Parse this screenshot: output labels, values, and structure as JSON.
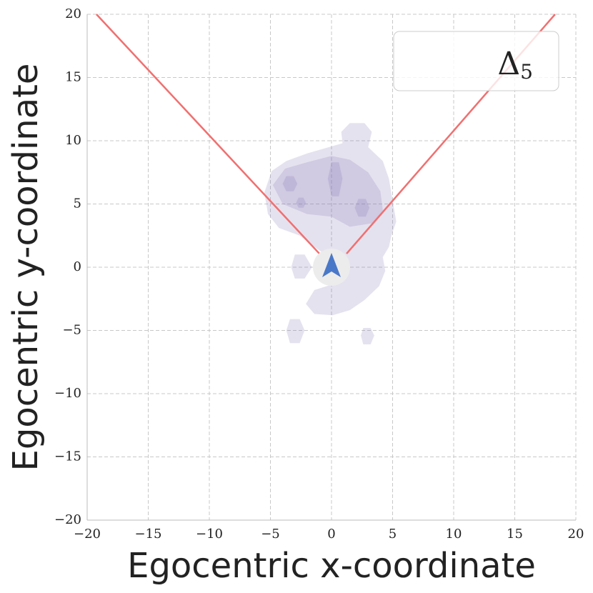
{
  "chart_data": {
    "type": "kde-lines",
    "x_label": "Egocentric x-coordinate",
    "y_label": "Egocentric y-coordinate",
    "xlim": [
      -20,
      20
    ],
    "ylim": [
      -20,
      20
    ],
    "xticks": [
      {
        "value": -20,
        "label": "−20"
      },
      {
        "value": -15,
        "label": "−15"
      },
      {
        "value": -10,
        "label": "−10"
      },
      {
        "value": -5,
        "label": "−5"
      },
      0,
      5,
      10,
      15,
      20
    ],
    "yticks": [
      {
        "value": -20,
        "label": "−20"
      },
      {
        "value": -15,
        "label": "−15"
      },
      {
        "value": -10,
        "label": "−10"
      },
      {
        "value": -5,
        "label": "−5"
      },
      0,
      5,
      10,
      15,
      20
    ],
    "grid": true,
    "density_color": "#7b6fae",
    "density": [
      {
        "x": [
          -5.5,
          -4.9,
          -3.7,
          -2.0,
          -0.2,
          0.9,
          0.8,
          1.5,
          2.7,
          3.3,
          3.0,
          4.2,
          4.7,
          5.0,
          5.3,
          4.9,
          4.7,
          4.2,
          4.4,
          3.9,
          2.7,
          1.5,
          0.1,
          -1.4,
          -2.1,
          -1.4,
          0.6,
          0.4,
          -1.1,
          -2.6,
          -4.3,
          -5.2
        ],
        "y": [
          5.9,
          7.6,
          8.4,
          9.0,
          9.5,
          9.8,
          10.7,
          11.4,
          11.4,
          10.7,
          9.5,
          8.4,
          7.0,
          5.3,
          3.6,
          2.5,
          1.6,
          0.8,
          -0.3,
          -1.5,
          -2.6,
          -3.4,
          -3.8,
          -3.7,
          -2.9,
          -1.8,
          -1.2,
          0.5,
          1.4,
          2.5,
          3.1,
          4.2
        ]
      },
      {
        "x": [
          -3.3,
          -3,
          -2.2,
          -1.6,
          -2.2,
          -3
        ],
        "y": [
          0,
          1,
          1,
          0,
          -0.9,
          -0.9
        ]
      },
      {
        "x": [
          -3.7,
          -3.4,
          -2.6,
          -2.2,
          -2.6,
          -3.4
        ],
        "y": [
          -5,
          -4.1,
          -4.1,
          -5,
          -6,
          -6
        ]
      },
      {
        "x": [
          2.4,
          2.6,
          3.2,
          3.5,
          3.2,
          2.6
        ],
        "y": [
          -5.4,
          -4.8,
          -4.8,
          -5.4,
          -6.1,
          -6.1
        ]
      },
      {
        "x": [
          -4.8,
          -3.8,
          -2,
          0,
          1.5,
          3,
          4,
          4.2,
          3.5,
          1.5,
          0,
          -2,
          -4
        ],
        "y": [
          6.5,
          7.8,
          8.3,
          8.8,
          8.5,
          7.5,
          6,
          4.5,
          3.5,
          3.2,
          4,
          4.2,
          5
        ]
      },
      {
        "x": [
          -4,
          -3.7,
          -3.1,
          -2.8,
          -3.1,
          -3.7
        ],
        "y": [
          6.6,
          7.2,
          7.2,
          6.6,
          6.0,
          6.0
        ]
      },
      {
        "x": [
          -0.3,
          0,
          0.6,
          0.9,
          0.6,
          0
        ],
        "y": [
          7,
          8.3,
          8.3,
          7,
          5.6,
          5.6
        ]
      },
      {
        "x": [
          1.9,
          2.2,
          2.8,
          3.1,
          2.8,
          2.2
        ],
        "y": [
          4.7,
          5.4,
          5.4,
          4.7,
          4.0,
          4.0
        ]
      },
      {
        "x": [
          -2.9,
          -2.7,
          -2.3,
          -2.1,
          -2.3,
          -2.7
        ],
        "y": [
          5.1,
          5.5,
          5.5,
          5.1,
          4.7,
          4.7
        ]
      }
    ],
    "series": [
      {
        "color": "#f07070",
        "x": [
          -19.24,
          -0.99
        ],
        "y": [
          20,
          1.07
        ]
      },
      {
        "color": "#f07070",
        "x": [
          1.23,
          18.3
        ],
        "y": [
          1.07,
          20
        ]
      }
    ],
    "agent": {
      "x": 0,
      "y": 0,
      "color": "#4a78c8"
    },
    "legend": {
      "text": "Δ",
      "subscript": "5",
      "position": "upper right"
    }
  }
}
